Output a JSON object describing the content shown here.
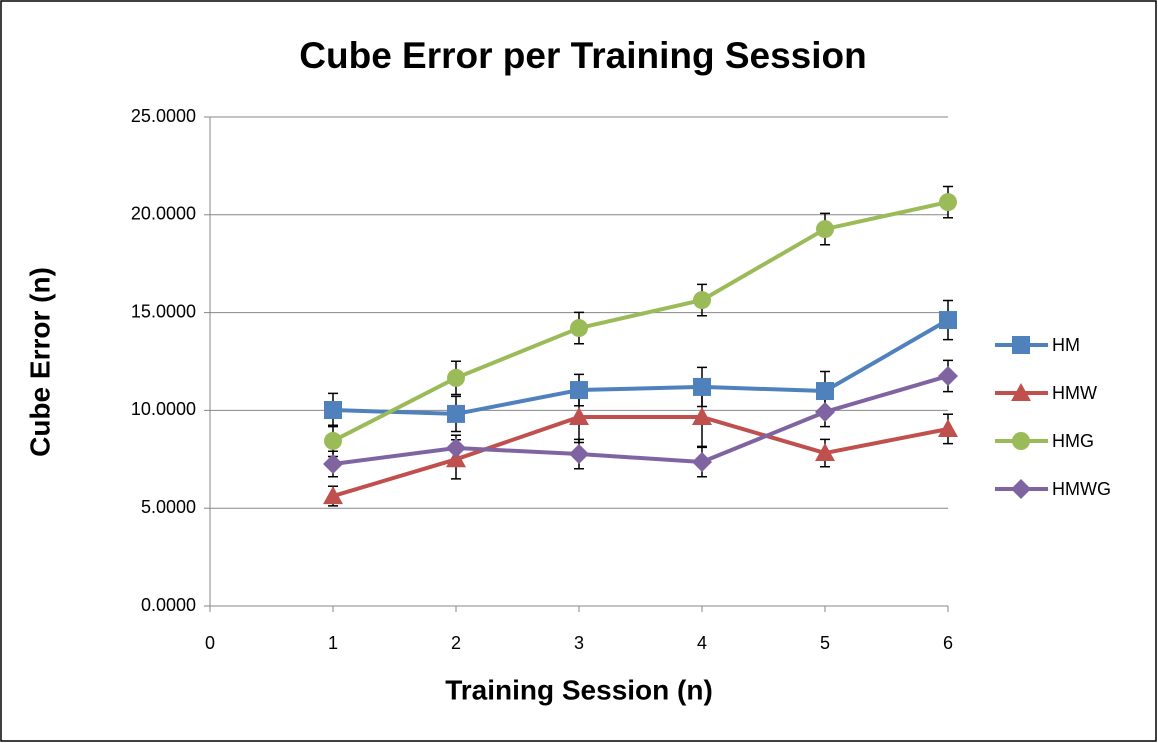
{
  "chart_data": {
    "type": "line",
    "title": "Cube Error per Training Session",
    "x_label": "Training Session (n)",
    "y_label": "Cube Error (n)",
    "x": [
      1,
      2,
      3,
      4,
      5,
      6
    ],
    "xlim": [
      0,
      6
    ],
    "xticks": [
      0,
      1,
      2,
      3,
      4,
      5,
      6
    ],
    "ylim": [
      0,
      25
    ],
    "yticks": [
      {
        "value": 0,
        "label": "0.0000"
      },
      {
        "value": 5,
        "label": "5.0000"
      },
      {
        "value": 10,
        "label": "10.0000"
      },
      {
        "value": 15,
        "label": "15.0000"
      },
      {
        "value": 20,
        "label": "20.0000"
      },
      {
        "value": 25,
        "label": "25.0000"
      }
    ],
    "grid": true,
    "legend": "right",
    "series": [
      {
        "name": "HM",
        "color": "#4f81bd",
        "marker": "square",
        "values": [
          10.02,
          9.82,
          11.04,
          11.2,
          10.99,
          14.62
        ],
        "errors": [
          0.85,
          0.9,
          0.8,
          1.0,
          1.0,
          1.0
        ]
      },
      {
        "name": "HMW",
        "color": "#c0504d",
        "marker": "triangle",
        "values": [
          5.62,
          7.5,
          9.66,
          9.66,
          7.82,
          9.05
        ],
        "errors": [
          0.5,
          1.0,
          1.3,
          1.5,
          0.7,
          0.75
        ]
      },
      {
        "name": "HMG",
        "color": "#9bbb59",
        "marker": "circle",
        "values": [
          8.44,
          11.66,
          14.21,
          15.64,
          19.27,
          20.65
        ],
        "errors": [
          0.8,
          0.85,
          0.8,
          0.8,
          0.8,
          0.8
        ]
      },
      {
        "name": "HMWG",
        "color": "#8064a2",
        "marker": "diamond",
        "values": [
          7.26,
          8.08,
          7.77,
          7.36,
          9.92,
          11.76
        ],
        "errors": [
          0.65,
          0.65,
          0.75,
          0.75,
          0.75,
          0.8
        ]
      }
    ]
  }
}
